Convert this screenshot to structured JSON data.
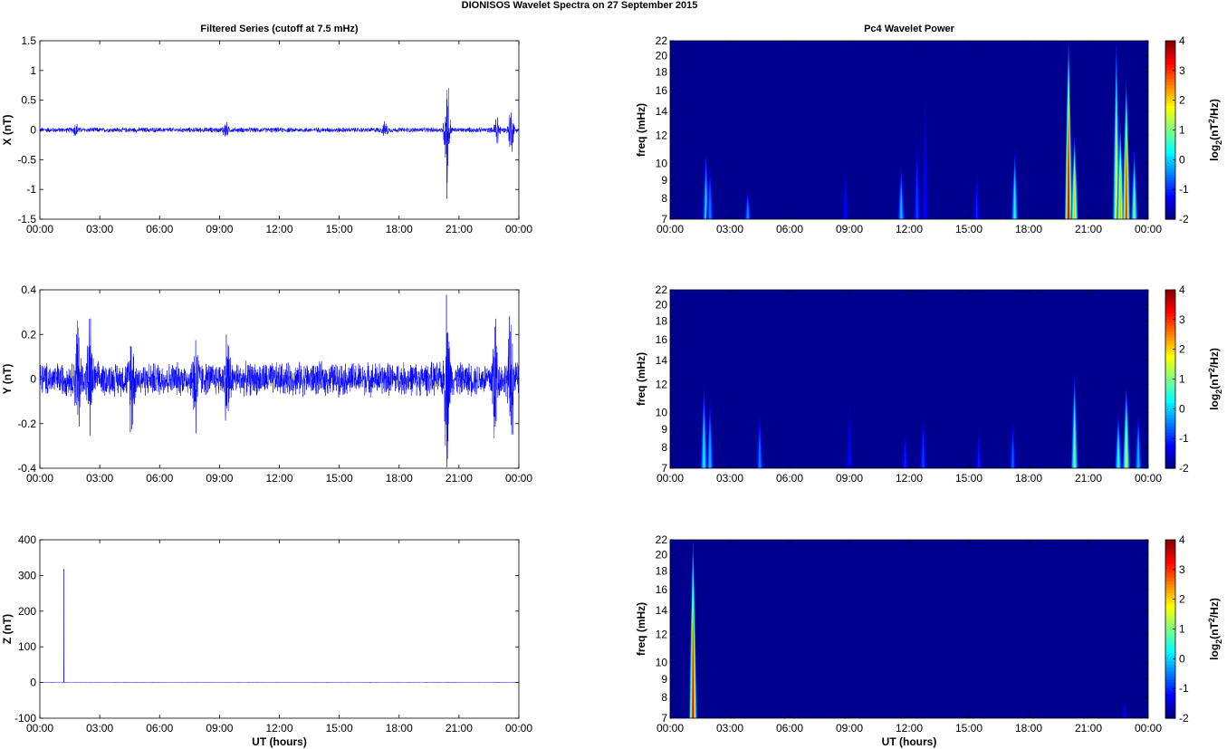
{
  "figure": {
    "title": "DIONISOS Wavelet Spectra on 27 September 2015"
  },
  "colors": {
    "series": "#0000ff",
    "spectrum_background": "#00008f",
    "colormap": "jet"
  },
  "chart_data": [
    {
      "type": "line",
      "id": "x-series",
      "title": "Filtered Series (cutoff at 7.5 mHz)",
      "xlabel": "",
      "ylabel": "X (nT)",
      "xticks": [
        "00:00",
        "03:00",
        "06:00",
        "09:00",
        "12:00",
        "15:00",
        "18:00",
        "21:00",
        "00:00"
      ],
      "xlim_hours": [
        0,
        24
      ],
      "ylim": [
        -1.5,
        1.5
      ],
      "yticks": [
        -1.5,
        -1,
        -0.5,
        0,
        0.5,
        1,
        1.5
      ],
      "grid": false,
      "noise_amplitude_nT": 0.04,
      "bursts": [
        {
          "hour": 1.8,
          "amp": 0.1
        },
        {
          "hour": 9.3,
          "amp": 0.12
        },
        {
          "hour": 17.3,
          "amp": 0.1
        },
        {
          "hour": 20.4,
          "amp": 1.05
        },
        {
          "hour": 22.9,
          "amp": 0.3
        },
        {
          "hour": 23.6,
          "amp": 0.4
        }
      ]
    },
    {
      "type": "line",
      "id": "y-series",
      "title": "",
      "xlabel": "",
      "ylabel": "Y (nT)",
      "xticks": [
        "00:00",
        "03:00",
        "06:00",
        "09:00",
        "12:00",
        "15:00",
        "18:00",
        "21:00",
        "00:00"
      ],
      "xlim_hours": [
        0,
        24
      ],
      "ylim": [
        -0.4,
        0.4
      ],
      "yticks": [
        -0.4,
        -0.2,
        0,
        0.2,
        0.4
      ],
      "grid": false,
      "noise_amplitude_nT": 0.07,
      "bursts": [
        {
          "hour": 1.9,
          "amp": 0.25
        },
        {
          "hour": 2.5,
          "amp": 0.22
        },
        {
          "hour": 4.6,
          "amp": 0.2
        },
        {
          "hour": 7.8,
          "amp": 0.22
        },
        {
          "hour": 9.4,
          "amp": 0.19
        },
        {
          "hour": 20.4,
          "amp": 0.35
        },
        {
          "hour": 22.8,
          "amp": 0.28
        },
        {
          "hour": 23.6,
          "amp": 0.3
        }
      ]
    },
    {
      "type": "line",
      "id": "z-series",
      "title": "",
      "xlabel": "UT (hours)",
      "ylabel": "Z (nT)",
      "xticks": [
        "00:00",
        "03:00",
        "06:00",
        "09:00",
        "12:00",
        "15:00",
        "18:00",
        "21:00",
        "00:00"
      ],
      "xlim_hours": [
        0,
        24
      ],
      "ylim": [
        -100,
        400
      ],
      "yticks": [
        -100,
        0,
        100,
        200,
        300,
        400
      ],
      "grid": false,
      "baseline_nT": 0,
      "spikes": [
        {
          "hour": 1.2,
          "value": 318
        }
      ]
    },
    {
      "type": "heatmap",
      "id": "x-spectrum",
      "title": "Pc4 Wavelet Power",
      "xlabel": "",
      "ylabel": "freq (mHz)",
      "xticks": [
        "00:00",
        "03:00",
        "06:00",
        "09:00",
        "12:00",
        "15:00",
        "18:00",
        "21:00",
        "00:00"
      ],
      "xlim_hours": [
        0,
        24
      ],
      "ylim_mHz": [
        7,
        22
      ],
      "yscale": "log",
      "yticks": [
        7,
        8,
        9,
        10,
        12,
        14,
        16,
        18,
        20,
        22
      ],
      "colorbar": {
        "label_main": "log",
        "label_sub": "2",
        "label_tail": "(nT",
        "label_sup": "2",
        "label_end": "/Hz)",
        "range": [
          -2,
          4
        ],
        "ticks": [
          -2,
          -1,
          0,
          1,
          2,
          3,
          4
        ]
      },
      "base_level": -2,
      "streaks": [
        {
          "hour": 1.8,
          "top": 11,
          "peak": 0.2
        },
        {
          "hour": 2.0,
          "top": 10,
          "peak": -0.4
        },
        {
          "hour": 3.9,
          "top": 8.5,
          "peak": -0.3
        },
        {
          "hour": 8.8,
          "top": 10,
          "peak": -1.2
        },
        {
          "hour": 11.6,
          "top": 10,
          "peak": 0.0
        },
        {
          "hour": 12.4,
          "top": 12,
          "peak": -0.8
        },
        {
          "hour": 12.8,
          "top": 16,
          "peak": -1.2
        },
        {
          "hour": 15.4,
          "top": 9.5,
          "peak": -1.0
        },
        {
          "hour": 17.3,
          "top": 11,
          "peak": 0.5
        },
        {
          "hour": 20.0,
          "top": 22,
          "peak": 3.8
        },
        {
          "hour": 20.3,
          "top": 12,
          "peak": 2.2
        },
        {
          "hour": 22.4,
          "top": 22,
          "peak": 1.8
        },
        {
          "hour": 22.6,
          "top": 13,
          "peak": 2.4
        },
        {
          "hour": 22.9,
          "top": 17,
          "peak": 3.4
        },
        {
          "hour": 23.3,
          "top": 11,
          "peak": 1.0
        }
      ]
    },
    {
      "type": "heatmap",
      "id": "y-spectrum",
      "title": "",
      "xlabel": "",
      "ylabel": "freq (mHz)",
      "xticks": [
        "00:00",
        "03:00",
        "06:00",
        "09:00",
        "12:00",
        "15:00",
        "18:00",
        "21:00",
        "00:00"
      ],
      "xlim_hours": [
        0,
        24
      ],
      "ylim_mHz": [
        7,
        22
      ],
      "yscale": "log",
      "yticks": [
        7,
        8,
        9,
        10,
        12,
        14,
        16,
        18,
        20,
        22
      ],
      "colorbar": {
        "label_main": "log",
        "label_sub": "2",
        "label_tail": "(nT",
        "label_sup": "2",
        "label_end": "/Hz)",
        "range": [
          -2,
          4
        ],
        "ticks": [
          -2,
          -1,
          0,
          1,
          2,
          3,
          4
        ]
      },
      "base_level": -2,
      "streaks": [
        {
          "hour": 1.7,
          "top": 12,
          "peak": 0.4
        },
        {
          "hour": 2.0,
          "top": 11,
          "peak": 0.0
        },
        {
          "hour": 4.5,
          "top": 10,
          "peak": -0.4
        },
        {
          "hour": 9.0,
          "top": 11,
          "peak": -1.2
        },
        {
          "hour": 11.8,
          "top": 9,
          "peak": -1.0
        },
        {
          "hour": 12.7,
          "top": 10,
          "peak": -0.8
        },
        {
          "hour": 15.5,
          "top": 9,
          "peak": -1.0
        },
        {
          "hour": 17.2,
          "top": 9.5,
          "peak": -0.6
        },
        {
          "hour": 20.3,
          "top": 13,
          "peak": 1.0
        },
        {
          "hour": 22.5,
          "top": 10,
          "peak": 0.6
        },
        {
          "hour": 22.9,
          "top": 12,
          "peak": 1.6
        },
        {
          "hour": 23.5,
          "top": 10,
          "peak": 0.0
        }
      ]
    },
    {
      "type": "heatmap",
      "id": "z-spectrum",
      "title": "",
      "xlabel": "UT (hours)",
      "ylabel": "freq (mHz)",
      "xticks": [
        "00:00",
        "03:00",
        "06:00",
        "09:00",
        "12:00",
        "15:00",
        "18:00",
        "21:00",
        "00:00"
      ],
      "xlim_hours": [
        0,
        24
      ],
      "ylim_mHz": [
        7,
        22
      ],
      "yscale": "log",
      "yticks": [
        7,
        8,
        9,
        10,
        12,
        14,
        16,
        18,
        20,
        22
      ],
      "colorbar": {
        "label_main": "log",
        "label_sub": "2",
        "label_tail": "(nT",
        "label_sup": "2",
        "label_end": "/Hz)",
        "range": [
          -2,
          4
        ],
        "ticks": [
          -2,
          -1,
          0,
          1,
          2,
          3,
          4
        ]
      },
      "base_level": -2,
      "streaks": [
        {
          "hour": 1.15,
          "top": 22,
          "peak": 3.7
        },
        {
          "hour": 22.8,
          "top": 8,
          "peak": -1.4
        }
      ]
    }
  ]
}
